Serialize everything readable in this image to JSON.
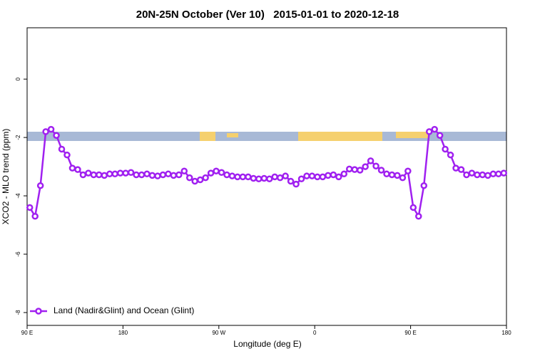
{
  "chart_data": {
    "type": "line",
    "title": "20N-25N October (Ver 10)   2015-01-01 to 2020-12-18",
    "x_label": "Longitude (deg E)",
    "y_label": "XCO2 - MLO trend (ppm)",
    "xlim": [
      90,
      540
    ],
    "ylim": [
      -8.44,
      1.76
    ],
    "xticks": [
      {
        "value": 90,
        "label": "90 E"
      },
      {
        "value": 180,
        "label": "180"
      },
      {
        "value": 270,
        "label": "90 W"
      },
      {
        "value": 360,
        "label": "0"
      },
      {
        "value": 450,
        "label": "90 E"
      },
      {
        "value": 540,
        "label": "180"
      }
    ],
    "yticks": [
      -8,
      -6,
      -4,
      -2,
      0
    ],
    "legend": "bottom-left",
    "x": [
      92.5,
      97.5,
      102.5,
      107.5,
      112.5,
      117.5,
      122.5,
      127.5,
      132.5,
      137.5,
      142.5,
      147.5,
      152.5,
      157.5,
      162.5,
      167.5,
      172.5,
      177.5,
      182.5,
      187.5,
      192.5,
      197.5,
      202.5,
      207.5,
      212.5,
      217.5,
      222.5,
      227.5,
      232.5,
      237.5,
      242.5,
      247.5,
      252.5,
      257.5,
      262.5,
      267.5,
      272.5,
      277.5,
      282.5,
      287.5,
      292.5,
      297.5,
      302.5,
      307.5,
      312.5,
      317.5,
      322.5,
      327.5,
      332.5,
      337.5,
      342.5,
      347.5,
      352.5,
      357.5,
      362.5,
      367.5,
      372.5,
      377.5,
      382.5,
      387.5,
      392.5,
      397.5,
      402.5,
      407.5,
      412.5,
      417.5,
      422.5,
      427.5,
      432.5,
      437.5,
      442.5,
      447.5,
      452.5,
      457.5,
      462.5,
      467.5,
      472.5,
      477.5,
      482.5,
      487.5,
      492.5,
      497.5,
      502.5,
      507.5,
      512.5,
      517.5,
      522.5,
      527.5,
      532.5,
      537.5
    ],
    "series": [
      {
        "name": "Land (Nadir&Glint) and Ocean (Glint)",
        "color": "#a020f0",
        "values": [
          -4.4,
          -4.7,
          -3.65,
          -1.8,
          -1.72,
          -1.93,
          -2.4,
          -2.6,
          -3.05,
          -3.1,
          -3.28,
          -3.22,
          -3.28,
          -3.28,
          -3.3,
          -3.25,
          -3.25,
          -3.22,
          -3.22,
          -3.2,
          -3.28,
          -3.28,
          -3.25,
          -3.3,
          -3.32,
          -3.28,
          -3.25,
          -3.3,
          -3.28,
          -3.15,
          -3.38,
          -3.5,
          -3.45,
          -3.38,
          -3.22,
          -3.15,
          -3.2,
          -3.28,
          -3.32,
          -3.35,
          -3.35,
          -3.35,
          -3.4,
          -3.42,
          -3.4,
          -3.42,
          -3.35,
          -3.38,
          -3.32,
          -3.5,
          -3.6,
          -3.42,
          -3.32,
          -3.32,
          -3.35,
          -3.35,
          -3.3,
          -3.28,
          -3.35,
          -3.25,
          -3.08,
          -3.1,
          -3.12,
          -3.0,
          -2.8,
          -2.98,
          -3.12,
          -3.25,
          -3.28,
          -3.3,
          -3.38,
          -3.15,
          -4.4,
          -4.7,
          -3.65,
          -1.8,
          -1.72,
          -1.93,
          -2.4,
          -2.6,
          -3.05,
          -3.1,
          -3.28,
          -3.22,
          -3.28,
          -3.28,
          -3.3,
          -3.25,
          -3.25,
          -3.22
        ]
      }
    ]
  }
}
